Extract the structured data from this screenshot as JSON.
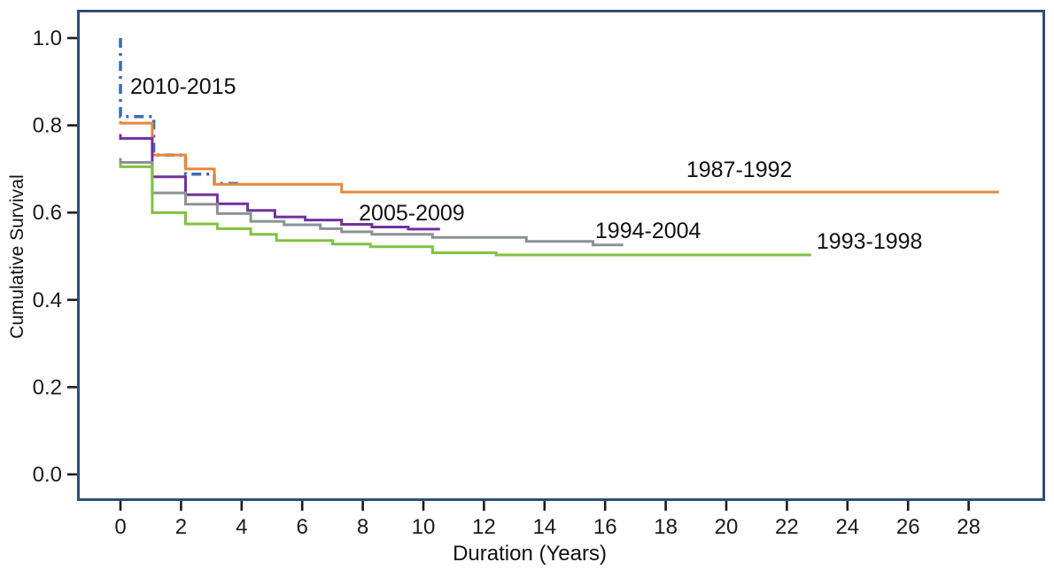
{
  "chart_data": {
    "type": "line",
    "subtype": "kaplan-meier-step-survival",
    "title": "",
    "xlabel": "Duration (Years)",
    "ylabel": "Cumulative Survival",
    "xlim": [
      -1.5,
      30.5
    ],
    "ylim": [
      -0.06,
      1.07
    ],
    "grid": "off",
    "legend": "inline-annotations",
    "axis_color": "#2e4d79",
    "tick_color": "#1a1a1a",
    "x_tick_values": [
      0,
      2,
      4,
      6,
      8,
      10,
      12,
      14,
      16,
      18,
      20,
      22,
      24,
      26,
      28
    ],
    "x_tick_labels": [
      "0",
      "2",
      "4",
      "6",
      "8",
      "10",
      "12",
      "14",
      "16",
      "18",
      "20",
      "22",
      "24",
      "26",
      "28"
    ],
    "y_tick_values": [
      0.0,
      0.2,
      0.4,
      0.6,
      0.8,
      1.0
    ],
    "y_tick_labels": [
      "0.0",
      "0.2",
      "0.4",
      "0.6",
      "0.8",
      "1.0"
    ],
    "series": [
      {
        "name": "2010-2015",
        "color": "#3a6db0",
        "style": "dash-dot",
        "label_anchor": {
          "t": 0.32,
          "v": 0.917
        },
        "points": [
          [
            0,
            1.0
          ],
          [
            0,
            0.82
          ],
          [
            1.1,
            0.82
          ],
          [
            1.1,
            0.732
          ],
          [
            2.15,
            0.732
          ],
          [
            2.15,
            0.688
          ],
          [
            3.1,
            0.688
          ],
          [
            3.1,
            0.667
          ],
          [
            4.0,
            0.667
          ]
        ]
      },
      {
        "name": "1987-1992",
        "color": "#e8873c",
        "style": "solid",
        "label_anchor": {
          "t": 18.68,
          "v": 0.726
        },
        "points": [
          [
            0,
            0.81
          ],
          [
            0,
            0.805
          ],
          [
            1.05,
            0.805
          ],
          [
            1.05,
            0.732
          ],
          [
            2.15,
            0.732
          ],
          [
            2.15,
            0.7
          ],
          [
            3.1,
            0.7
          ],
          [
            3.1,
            0.665
          ],
          [
            7.3,
            0.665
          ],
          [
            7.3,
            0.647
          ],
          [
            29.0,
            0.647
          ]
        ]
      },
      {
        "name": "2005-2009",
        "color": "#70309e",
        "style": "solid",
        "label_anchor": {
          "t": 7.87,
          "v": 0.627
        },
        "points": [
          [
            0,
            0.78
          ],
          [
            0,
            0.77
          ],
          [
            1.05,
            0.77
          ],
          [
            1.05,
            0.682
          ],
          [
            2.15,
            0.682
          ],
          [
            2.15,
            0.641
          ],
          [
            3.2,
            0.641
          ],
          [
            3.2,
            0.62
          ],
          [
            4.2,
            0.62
          ],
          [
            4.2,
            0.605
          ],
          [
            5.1,
            0.605
          ],
          [
            5.1,
            0.59
          ],
          [
            6.1,
            0.59
          ],
          [
            6.1,
            0.583
          ],
          [
            7.3,
            0.583
          ],
          [
            7.3,
            0.573
          ],
          [
            8.3,
            0.573
          ],
          [
            8.3,
            0.567
          ],
          [
            9.5,
            0.567
          ],
          [
            9.5,
            0.562
          ],
          [
            10.55,
            0.562
          ]
        ]
      },
      {
        "name": "1994-2004",
        "color": "#8b9294",
        "style": "solid",
        "label_anchor": {
          "t": 15.67,
          "v": 0.586
        },
        "points": [
          [
            0,
            0.725
          ],
          [
            0,
            0.715
          ],
          [
            1.05,
            0.715
          ],
          [
            1.05,
            0.645
          ],
          [
            2.15,
            0.645
          ],
          [
            2.15,
            0.619
          ],
          [
            3.2,
            0.619
          ],
          [
            3.2,
            0.598
          ],
          [
            4.3,
            0.598
          ],
          [
            4.3,
            0.58
          ],
          [
            5.4,
            0.58
          ],
          [
            5.4,
            0.572
          ],
          [
            6.6,
            0.572
          ],
          [
            6.6,
            0.563
          ],
          [
            7.3,
            0.563
          ],
          [
            7.3,
            0.556
          ],
          [
            8.3,
            0.556
          ],
          [
            8.3,
            0.55
          ],
          [
            10.3,
            0.55
          ],
          [
            10.3,
            0.543
          ],
          [
            13.4,
            0.543
          ],
          [
            13.4,
            0.534
          ],
          [
            15.6,
            0.534
          ],
          [
            15.6,
            0.526
          ],
          [
            16.6,
            0.526
          ]
        ]
      },
      {
        "name": "1993-1998",
        "color": "#7fc241",
        "style": "solid",
        "label_anchor": {
          "t": 22.98,
          "v": 0.562
        },
        "points": [
          [
            0,
            0.712
          ],
          [
            0,
            0.705
          ],
          [
            1.05,
            0.705
          ],
          [
            1.05,
            0.6
          ],
          [
            2.15,
            0.6
          ],
          [
            2.15,
            0.574
          ],
          [
            3.2,
            0.574
          ],
          [
            3.2,
            0.563
          ],
          [
            4.3,
            0.563
          ],
          [
            4.3,
            0.55
          ],
          [
            5.15,
            0.55
          ],
          [
            5.15,
            0.536
          ],
          [
            7.0,
            0.536
          ],
          [
            7.0,
            0.528
          ],
          [
            8.25,
            0.528
          ],
          [
            8.25,
            0.522
          ],
          [
            10.3,
            0.522
          ],
          [
            10.3,
            0.508
          ],
          [
            12.4,
            0.508
          ],
          [
            12.4,
            0.503
          ],
          [
            22.8,
            0.503
          ]
        ]
      }
    ]
  }
}
